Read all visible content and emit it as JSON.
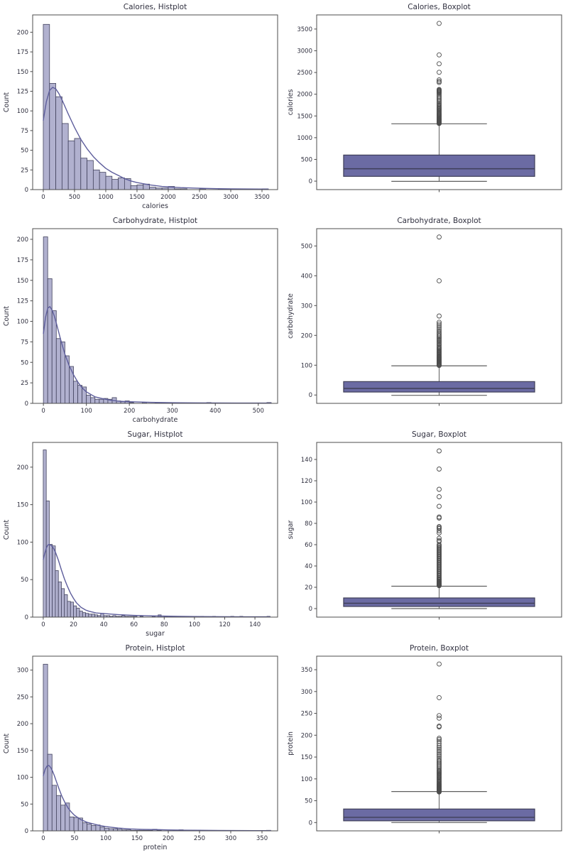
{
  "page": {
    "background": "#ffffff"
  },
  "colors": {
    "bar_fill": "#b1b1cf",
    "bar_edge": "#43435e",
    "kde_line": "#5e5e9c",
    "box_fill": "#6b6ba3",
    "box_edge": "#3f3f58",
    "whisker": "#5f5f5f",
    "outlier": "#4c4c4c",
    "text": "#30303f",
    "frame": "#4d4d4d"
  },
  "chart_data": [
    {
      "kind": "histplot",
      "type": "histogram",
      "title": "Calories, Histplot",
      "xlabel": "calories",
      "ylabel": "Count",
      "xlim": [
        -170,
        3750
      ],
      "ylim": [
        0,
        222
      ],
      "xticks": [
        0,
        500,
        1000,
        1500,
        2000,
        2500,
        3000,
        3500
      ],
      "yticks": [
        0,
        25,
        50,
        75,
        100,
        125,
        150,
        175,
        200
      ],
      "bin_start": 0,
      "bin_width": 100,
      "counts": [
        210,
        135,
        118,
        84,
        62,
        65,
        40,
        37,
        25,
        22,
        17,
        13,
        15,
        14,
        5,
        6,
        7,
        3,
        2,
        2,
        4,
        1,
        1,
        0,
        0,
        1,
        0,
        0,
        1,
        1,
        0,
        0,
        0,
        0,
        0,
        1
      ],
      "kde_x": [
        0,
        50,
        100,
        150,
        200,
        250,
        300,
        350,
        400,
        500,
        600,
        700,
        800,
        900,
        1000,
        1100,
        1200,
        1300,
        1400,
        1500,
        1600,
        1700,
        1800,
        1900,
        2000,
        2100,
        2200,
        2400,
        2600,
        2800,
        3000,
        3200,
        3400,
        3600
      ],
      "kde_y": [
        88,
        112,
        126,
        130,
        128,
        122,
        114,
        105,
        96,
        79,
        64,
        52,
        42,
        34,
        27,
        22,
        18,
        14,
        11,
        9,
        7.5,
        6,
        5,
        4,
        3.5,
        3,
        2.5,
        2,
        1.5,
        1.2,
        1,
        0.8,
        0.7,
        0.6
      ]
    },
    {
      "kind": "boxplot",
      "type": "boxplot",
      "title": "Calories, Boxplot",
      "ylabel": "calories",
      "ylim": [
        -195,
        3825
      ],
      "yticks": [
        0,
        500,
        1000,
        1500,
        2000,
        2500,
        3000,
        3500
      ],
      "box": {
        "whisker_low": -5,
        "q1": 110,
        "median": 285,
        "q3": 600,
        "whisker_high": 1320
      },
      "outliers": [
        1325,
        1335,
        1345,
        1355,
        1365,
        1375,
        1385,
        1395,
        1405,
        1415,
        1425,
        1440,
        1455,
        1470,
        1485,
        1500,
        1515,
        1530,
        1545,
        1560,
        1580,
        1600,
        1620,
        1640,
        1660,
        1680,
        1700,
        1725,
        1750,
        1775,
        1800,
        1830,
        1860,
        1890,
        1920,
        1950,
        1985,
        2015,
        2035,
        2050,
        2065,
        2080,
        2095,
        2110,
        2270,
        2295,
        2330,
        2505,
        2700,
        2905,
        3630
      ]
    },
    {
      "kind": "histplot",
      "type": "histogram",
      "title": "Carbohydrate, Histplot",
      "xlabel": "carbohydrate",
      "ylabel": "Count",
      "xlim": [
        -25,
        545
      ],
      "ylim": [
        0,
        213
      ],
      "xticks": [
        0,
        100,
        200,
        300,
        400,
        500
      ],
      "yticks": [
        0,
        25,
        50,
        75,
        100,
        125,
        150,
        175,
        200
      ],
      "bin_start": 0,
      "bin_width": 10,
      "counts": [
        203,
        152,
        113,
        79,
        75,
        58,
        45,
        27,
        22,
        20,
        10,
        7,
        5,
        5,
        6,
        5,
        7,
        3,
        2,
        3,
        1,
        0,
        0,
        1,
        0,
        0,
        1,
        0,
        0,
        0,
        0,
        0,
        0,
        0,
        0,
        0,
        0,
        0,
        1,
        0,
        0,
        0,
        0,
        0,
        0,
        0,
        0,
        0,
        0,
        0,
        0,
        0,
        1
      ],
      "kde_x": [
        0,
        5,
        10,
        15,
        20,
        25,
        30,
        35,
        40,
        50,
        60,
        70,
        80,
        90,
        100,
        110,
        120,
        140,
        160,
        180,
        200,
        250,
        300,
        350,
        400,
        450,
        500,
        530
      ],
      "kde_y": [
        85,
        105,
        116,
        118,
        114,
        107,
        98,
        88,
        78,
        60,
        46,
        35,
        26,
        19,
        14,
        11,
        8,
        5.5,
        3.5,
        2.5,
        2,
        1.2,
        0.8,
        0.6,
        0.5,
        0.4,
        0.4,
        0.4
      ]
    },
    {
      "kind": "boxplot",
      "type": "boxplot",
      "title": "Carbohydrate, Boxplot",
      "ylabel": "carbohydrate",
      "ylim": [
        -28,
        558
      ],
      "yticks": [
        0,
        100,
        200,
        300,
        400,
        500
      ],
      "box": {
        "whisker_low": -1,
        "q1": 10,
        "median": 22,
        "q3": 45,
        "whisker_high": 98
      },
      "outliers": [
        99,
        100,
        102,
        104,
        106,
        108,
        110,
        112,
        114,
        116,
        118,
        120,
        122,
        124,
        126,
        128,
        130,
        133,
        136,
        139,
        142,
        145,
        148,
        151,
        154,
        157,
        160,
        164,
        168,
        172,
        176,
        180,
        184,
        188,
        192,
        196,
        200,
        205,
        210,
        215,
        220,
        226,
        232,
        238,
        244,
        265,
        383,
        530
      ]
    },
    {
      "kind": "histplot",
      "type": "histogram",
      "title": "Sugar, Histplot",
      "xlabel": "sugar",
      "ylabel": "Count",
      "xlim": [
        -7,
        155
      ],
      "ylim": [
        0,
        233
      ],
      "xticks": [
        0,
        20,
        40,
        60,
        80,
        100,
        120,
        140
      ],
      "yticks": [
        0,
        50,
        100,
        150,
        200
      ],
      "bin_start": 0,
      "bin_width": 2,
      "counts": [
        223,
        155,
        97,
        95,
        62,
        47,
        38,
        30,
        21,
        20,
        15,
        12,
        8,
        6,
        5,
        4,
        4,
        3,
        2,
        5,
        2,
        2,
        1,
        2,
        1,
        1,
        2,
        1,
        1,
        1,
        1,
        0,
        1,
        0,
        0,
        0,
        1,
        0,
        3,
        0,
        1,
        0,
        0,
        0,
        1,
        0,
        0,
        0,
        1,
        0,
        0,
        0,
        1,
        0,
        0,
        0,
        1,
        0,
        0,
        0,
        0,
        0,
        1,
        0,
        0,
        1,
        0,
        0,
        0,
        0,
        0,
        0,
        0,
        0,
        1
      ],
      "kde_x": [
        0,
        1,
        2,
        3,
        4,
        5,
        6,
        7,
        8,
        10,
        12,
        14,
        16,
        18,
        20,
        22,
        25,
        28,
        30,
        35,
        40,
        45,
        50,
        55,
        60,
        70,
        80,
        90,
        100,
        110,
        120,
        135,
        150
      ],
      "kde_y": [
        77,
        85,
        92,
        96,
        97,
        96,
        94,
        91,
        87,
        76,
        63,
        51,
        41,
        32,
        25,
        19,
        13,
        9.5,
        8,
        5.5,
        4.8,
        4,
        3.3,
        2.8,
        2.3,
        1.7,
        1.3,
        1,
        0.8,
        0.6,
        0.5,
        0.4,
        0.35
      ]
    },
    {
      "kind": "boxplot",
      "type": "boxplot",
      "title": "Sugar, Boxplot",
      "ylabel": "sugar",
      "ylim": [
        -8,
        156
      ],
      "yticks": [
        0,
        20,
        40,
        60,
        80,
        100,
        120,
        140
      ],
      "box": {
        "whisker_low": 0,
        "q1": 2,
        "median": 5,
        "q3": 10,
        "whisker_high": 21
      },
      "outliers": [
        21.5,
        22,
        22.5,
        23,
        23.5,
        24,
        24.5,
        25,
        25.5,
        26,
        27,
        27.5,
        28,
        29,
        30,
        31,
        32,
        33,
        34,
        35,
        36,
        37,
        38,
        39,
        40,
        41,
        42,
        43,
        44,
        45,
        46,
        47,
        48,
        49,
        50,
        51,
        52,
        53,
        54,
        55,
        56,
        57,
        58,
        59,
        60,
        63,
        64,
        66,
        71,
        73,
        75,
        76,
        77,
        85,
        86,
        96,
        105,
        112,
        131,
        148
      ]
    },
    {
      "kind": "histplot",
      "type": "histogram",
      "title": "Protein, Histplot",
      "xlabel": "protein",
      "ylabel": "Count",
      "xlim": [
        -17,
        375
      ],
      "ylim": [
        0,
        326
      ],
      "xticks": [
        0,
        50,
        100,
        150,
        200,
        250,
        300,
        350
      ],
      "yticks": [
        0,
        50,
        100,
        150,
        200,
        250,
        300
      ],
      "bin_start": 0,
      "bin_width": 7,
      "counts": [
        311,
        143,
        85,
        66,
        48,
        52,
        26,
        25,
        24,
        15,
        13,
        10,
        11,
        7,
        5,
        4,
        4,
        3,
        2,
        2,
        1,
        1,
        1,
        1,
        1,
        3,
        1,
        0,
        0,
        0,
        1,
        2,
        0,
        0,
        0,
        1,
        0,
        0,
        0,
        0,
        0,
        0,
        0,
        0,
        0,
        0,
        0,
        0,
        0,
        0,
        0,
        1
      ],
      "kde_x": [
        0,
        3,
        6,
        9,
        12,
        15,
        18,
        21,
        25,
        30,
        35,
        40,
        45,
        50,
        60,
        70,
        80,
        90,
        100,
        110,
        120,
        140,
        160,
        180,
        200,
        225,
        250,
        280,
        310,
        340,
        364
      ],
      "kde_y": [
        103,
        115,
        121,
        122,
        118,
        111,
        102,
        92,
        79,
        64,
        52,
        42,
        35,
        29,
        21,
        16,
        13,
        10,
        8,
        6.5,
        5.2,
        3.6,
        2.8,
        2.3,
        1.8,
        1.3,
        1,
        0.7,
        0.55,
        0.45,
        0.4
      ]
    },
    {
      "kind": "boxplot",
      "type": "boxplot",
      "title": "Protein, Boxplot",
      "ylabel": "protein",
      "ylim": [
        -19,
        381
      ],
      "yticks": [
        0,
        50,
        100,
        150,
        200,
        250,
        300,
        350
      ],
      "box": {
        "whisker_low": 0,
        "q1": 4,
        "median": 12,
        "q3": 31,
        "whisker_high": 71
      },
      "outliers": [
        70,
        71,
        72,
        73,
        74,
        75,
        76,
        77,
        78,
        79,
        80,
        81,
        82,
        83,
        84,
        85,
        86,
        87,
        88,
        90,
        92,
        94,
        96,
        98,
        100,
        102,
        104,
        106,
        108,
        110,
        112,
        114,
        116,
        118,
        120,
        123,
        126,
        129,
        132,
        135,
        138,
        141,
        144,
        148,
        152,
        156,
        160,
        164,
        168,
        172,
        176,
        181,
        186,
        190,
        193,
        219,
        221,
        239,
        245,
        286,
        363
      ]
    }
  ]
}
